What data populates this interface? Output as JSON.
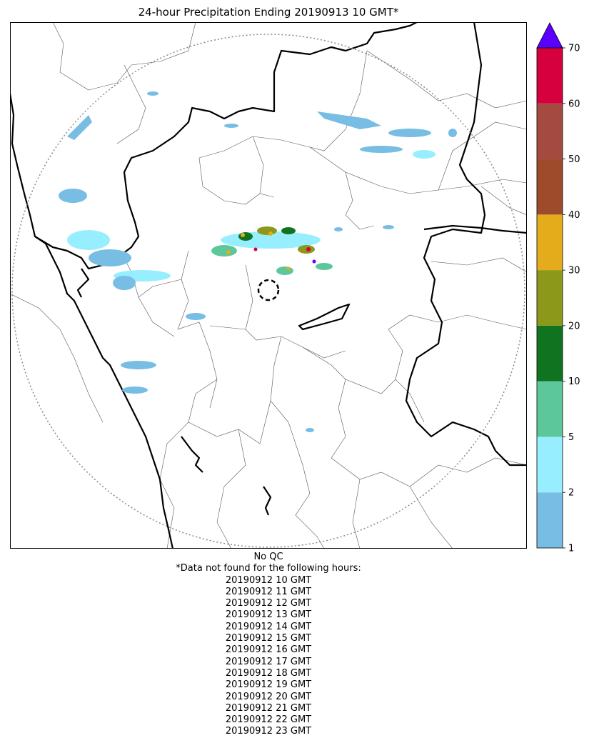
{
  "title": "24-hour Precipitation Ending 20190913 10 GMT*",
  "colorbar": {
    "ticks": [
      "1",
      "2",
      "5",
      "10",
      "20",
      "30",
      "40",
      "50",
      "60",
      "70"
    ],
    "colors": [
      "#78bde4",
      "#96eefe",
      "#5dc79c",
      "#0f7320",
      "#8b9819",
      "#e4ab1a",
      "#9d4b2b",
      "#a44a40",
      "#d6003f"
    ],
    "extend_color": "#5b00ff"
  },
  "notes": {
    "qc": "No QC",
    "missing_header": "*Data not found for the following hours:",
    "missing_hours": [
      "20190912 10 GMT",
      "20190912 11 GMT",
      "20190912 12 GMT",
      "20190912 13 GMT",
      "20190912 14 GMT",
      "20190912 15 GMT",
      "20190912 16 GMT",
      "20190912 17 GMT",
      "20190912 18 GMT",
      "20190912 19 GMT",
      "20190912 20 GMT",
      "20190912 21 GMT",
      "20190912 22 GMT",
      "20190912 23 GMT"
    ]
  }
}
